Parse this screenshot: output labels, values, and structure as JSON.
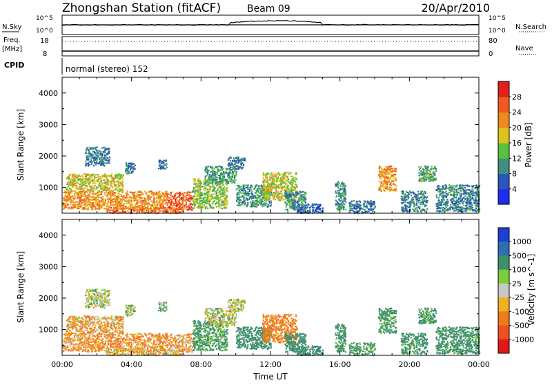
{
  "header": {
    "title": "Zhongshan Station (fitACF)",
    "beam": "Beam 09",
    "date": "20/Apr/2010"
  },
  "summary_panels": {
    "nsky_label": "N.Sky",
    "nsearch_label": "N.Search",
    "log_top": "10^5",
    "log_bottom": "10^0",
    "freq_label_1": "Freq.",
    "freq_label_2": "[MHz]",
    "freq_top": "18",
    "freq_bottom": "8",
    "nave_label": "Nave",
    "nave_top": "80",
    "nave_bottom": "0",
    "cpid_label": "CPID",
    "cpid_text": "normal (stereo) 152"
  },
  "chart_data": [
    {
      "type": "heatmap",
      "title": "",
      "xlabel": "Time UT",
      "ylabel": "Slant Range [km]",
      "x_ticks": [
        "00:00",
        "04:00",
        "08:00",
        "12:00",
        "16:00",
        "20:00",
        "00:00"
      ],
      "x_range_hours": [
        0,
        24
      ],
      "y_ticks": [
        1000,
        2000,
        3000,
        4000
      ],
      "ylim": [
        180,
        4500
      ],
      "colorbar": {
        "label": "Power [dB]",
        "ticks": [
          4,
          8,
          12,
          16,
          20,
          24,
          28
        ],
        "colors": [
          "#1f2df0",
          "#2a57b8",
          "#3e8f7e",
          "#58c23c",
          "#e0c21e",
          "#f08a1e",
          "#f05a1e",
          "#e0201a"
        ]
      }
    },
    {
      "type": "heatmap",
      "title": "",
      "xlabel": "Time UT",
      "ylabel": "Slant Range [km]",
      "x_ticks": [
        "00:00",
        "04:00",
        "08:00",
        "12:00",
        "16:00",
        "20:00",
        "00:00"
      ],
      "x_range_hours": [
        0,
        24
      ],
      "y_ticks": [
        1000,
        2000,
        3000,
        4000
      ],
      "ylim": [
        180,
        4500
      ],
      "colorbar": {
        "label": "Velocity [m s^-1]",
        "ticks": [
          1000,
          500,
          100,
          25,
          -25,
          -100,
          -500,
          -1000
        ],
        "colors": [
          "#1f3fd0",
          "#2f6fb0",
          "#3e8f6e",
          "#7ccc3c",
          "#c8c8c8",
          "#f0b020",
          "#f07a1e",
          "#f0501e",
          "#e01818"
        ]
      }
    }
  ],
  "echo_regions": [
    {
      "t0": 0.0,
      "t1": 6.0,
      "r0": 320,
      "r1": 900,
      "p": 22,
      "v": -120
    },
    {
      "t0": 6.0,
      "t1": 7.5,
      "r0": 300,
      "r1": 880,
      "p": 26,
      "v": -100
    },
    {
      "t0": 2.5,
      "t1": 7.0,
      "r0": 200,
      "r1": 380,
      "p": 24,
      "v": -60
    },
    {
      "t0": 0.2,
      "t1": 3.5,
      "r0": 900,
      "r1": 1450,
      "p": 18,
      "v": -80
    },
    {
      "t0": 1.3,
      "t1": 2.7,
      "r0": 1700,
      "r1": 2300,
      "p": 8,
      "v": 20
    },
    {
      "t0": 3.6,
      "t1": 4.2,
      "r0": 1450,
      "r1": 1800,
      "p": 8,
      "v": 60
    },
    {
      "t0": 5.5,
      "t1": 6.0,
      "r0": 1600,
      "r1": 1900,
      "p": 8,
      "v": 100
    },
    {
      "t0": 7.5,
      "t1": 9.5,
      "r0": 350,
      "r1": 1300,
      "p": 15,
      "v": 150
    },
    {
      "t0": 8.2,
      "t1": 10.0,
      "r0": 1150,
      "r1": 1700,
      "p": 11,
      "v": 20
    },
    {
      "t0": 9.5,
      "t1": 10.5,
      "r0": 1600,
      "r1": 2000,
      "p": 8,
      "v": 10
    },
    {
      "t0": 10.0,
      "t1": 12.0,
      "r0": 400,
      "r1": 1100,
      "p": 10,
      "v": 300
    },
    {
      "t0": 11.5,
      "t1": 13.5,
      "r0": 600,
      "r1": 1500,
      "p": 17,
      "v": -200
    },
    {
      "t0": 12.8,
      "t1": 14.0,
      "r0": 300,
      "r1": 900,
      "p": 10,
      "v": 250
    },
    {
      "t0": 13.5,
      "t1": 15.0,
      "r0": 200,
      "r1": 500,
      "p": 6,
      "v": 400
    },
    {
      "t0": 15.7,
      "t1": 16.3,
      "r0": 300,
      "r1": 1200,
      "p": 10,
      "v": 200
    },
    {
      "t0": 16.5,
      "t1": 18.0,
      "r0": 200,
      "r1": 600,
      "p": 8,
      "v": 150
    },
    {
      "t0": 18.2,
      "t1": 19.2,
      "r0": 900,
      "r1": 1700,
      "p": 22,
      "v": 150
    },
    {
      "t0": 19.5,
      "t1": 21.0,
      "r0": 250,
      "r1": 900,
      "p": 9,
      "v": 200
    },
    {
      "t0": 20.5,
      "t1": 21.5,
      "r0": 1200,
      "r1": 1700,
      "p": 12,
      "v": 150
    },
    {
      "t0": 21.5,
      "t1": 24.0,
      "r0": 250,
      "r1": 1100,
      "p": 9,
      "v": 200
    }
  ]
}
